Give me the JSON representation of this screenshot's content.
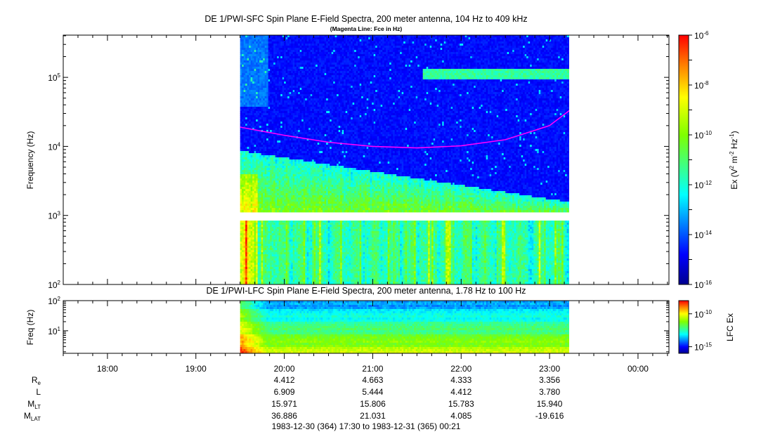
{
  "chart_data": [
    {
      "type": "heatmap",
      "title": "DE 1/PWI-SFC  Spin Plane E-Field Spectra, 200 meter antenna, 104 Hz to 409 kHz",
      "subtitle": "(Magenta Line: Fce in Hz)",
      "ylabel": "Frequency (Hz)",
      "yscale": "log",
      "ylim": [
        100,
        409000
      ],
      "yticks": [
        {
          "v": 100,
          "b": "10",
          "e": "2"
        },
        {
          "v": 1000,
          "b": "10",
          "e": "3"
        },
        {
          "v": 10000,
          "b": "10",
          "e": "4"
        },
        {
          "v": 100000,
          "b": "10",
          "e": "5"
        }
      ],
      "xlim": [
        "17:30",
        "00:21"
      ],
      "data_time_range": [
        "19:30",
        "23:15"
      ],
      "gap_frequency_range_hz": [
        850,
        1060
      ],
      "fce_line": {
        "color": "#ff00ff",
        "points": [
          [
            "19:30",
            19000
          ],
          [
            "20:00",
            14500
          ],
          [
            "20:30",
            11500
          ],
          [
            "21:00",
            10000
          ],
          [
            "21:30",
            9500
          ],
          [
            "22:00",
            10200
          ],
          [
            "22:30",
            12500
          ],
          [
            "23:00",
            20000
          ],
          [
            "23:15",
            35000
          ]
        ]
      },
      "colorbar": {
        "label": "Ex (V² m⁻² Hz⁻¹)",
        "label_parts": {
          "pre": "Ex (V",
          "s1": "2",
          "mid1": " m",
          "s2": "-2",
          "mid2": " Hz",
          "s3": "-1",
          "post": ")"
        },
        "scale": "log",
        "range": [
          1e-16,
          1e-06
        ],
        "ticks": [
          {
            "v": -6,
            "b": "10",
            "e": "-6"
          },
          {
            "v": -8,
            "b": "10",
            "e": "-8"
          },
          {
            "v": -10,
            "b": "10",
            "e": "-10"
          },
          {
            "v": -12,
            "b": "10",
            "e": "-12"
          },
          {
            "v": -14,
            "b": "10",
            "e": "-14"
          },
          {
            "v": -16,
            "b": "10",
            "e": "-16"
          }
        ]
      }
    },
    {
      "type": "heatmap",
      "title": "DE 1/PWI-LFC  Spin Plane E-Field Spectra, 200 meter antenna, 1.78 Hz to 100 Hz",
      "ylabel": "Freq (Hz)",
      "yscale": "log",
      "ylim": [
        1.78,
        100
      ],
      "yticks": [
        {
          "v": 10,
          "b": "10",
          "e": "1"
        },
        {
          "v": 100,
          "b": "10",
          "e": "2"
        }
      ],
      "xlim": [
        "17:30",
        "00:21"
      ],
      "data_time_range": [
        "19:30",
        "23:15"
      ],
      "colorbar": {
        "label": "LFC Ex",
        "scale": "log",
        "range": [
          1e-16,
          1e-08
        ],
        "ticks": [
          {
            "v": -10,
            "b": "10",
            "e": "-10"
          },
          {
            "v": -15,
            "b": "10",
            "e": "-15"
          }
        ]
      }
    }
  ],
  "x_axis": {
    "tick_labels": [
      "18:00",
      "19:00",
      "20:00",
      "21:00",
      "22:00",
      "23:00",
      "00:00"
    ]
  },
  "ephemeris": {
    "rows": [
      {
        "base": "R",
        "sub": "e",
        "values": [
          "4.412",
          "4.663",
          "4.333",
          "3.356"
        ]
      },
      {
        "base": "L",
        "sub": "",
        "values": [
          "6.909",
          "5.444",
          "4.412",
          "3.780"
        ]
      },
      {
        "base": "M",
        "sub": "LT",
        "values": [
          "15.971",
          "15.806",
          "15.783",
          "15.940"
        ]
      },
      {
        "base": "M",
        "sub": "LAT",
        "values": [
          "36.886",
          "21.031",
          "4.085",
          "-19.616"
        ]
      }
    ],
    "value_times": [
      "20:00",
      "21:00",
      "22:00",
      "23:00"
    ]
  },
  "footer": {
    "time_range": "1983-12-30 (364) 17:30 to 1983-12-31 (365) 00:21"
  }
}
